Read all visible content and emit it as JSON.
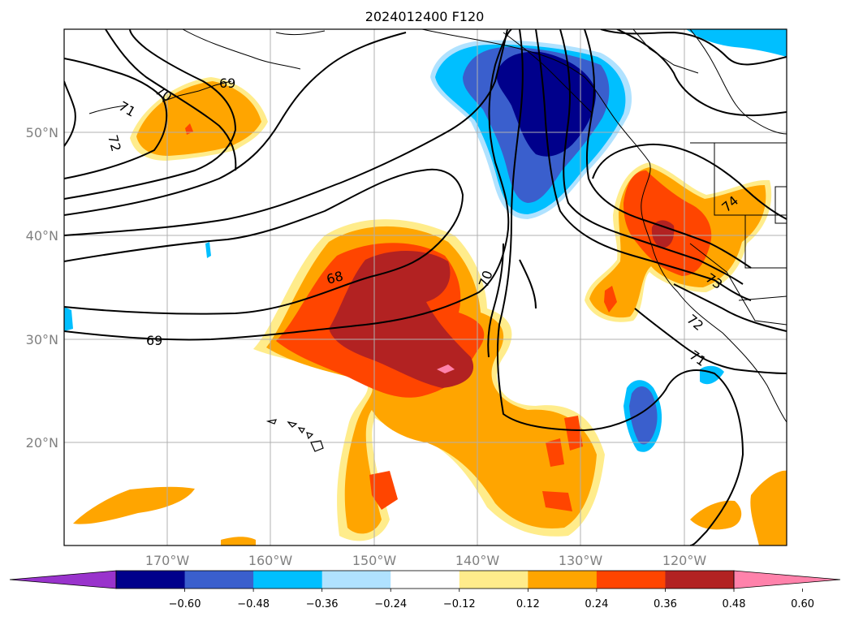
{
  "title": "2024012400 F120",
  "lat_labels": [
    "50°N",
    "40°N",
    "30°N",
    "20°N"
  ],
  "lon_labels": [
    "170°W",
    "160°W",
    "150°W",
    "140°W",
    "130°W",
    "120°W"
  ],
  "contour_labels": [
    "70",
    "71",
    "72",
    "69",
    "68",
    "69",
    "70",
    "74",
    "73",
    "72",
    "71"
  ],
  "colorbar": {
    "ticks": [
      "−0.60",
      "−0.48",
      "−0.36",
      "−0.24",
      "−0.12",
      "0.12",
      "0.24",
      "0.36",
      "0.48",
      "0.60"
    ],
    "colors": [
      "#9933cc",
      "#00008b",
      "#3a5fcd",
      "#00bfff",
      "#b0e2ff",
      "#ffffff",
      "#ffec8b",
      "#ffa500",
      "#ff4500",
      "#b22222",
      "#ff82ab"
    ]
  },
  "colors": {
    "frame": "#000000",
    "grid": "#b0b0b0",
    "label_gray": "#808080"
  }
}
